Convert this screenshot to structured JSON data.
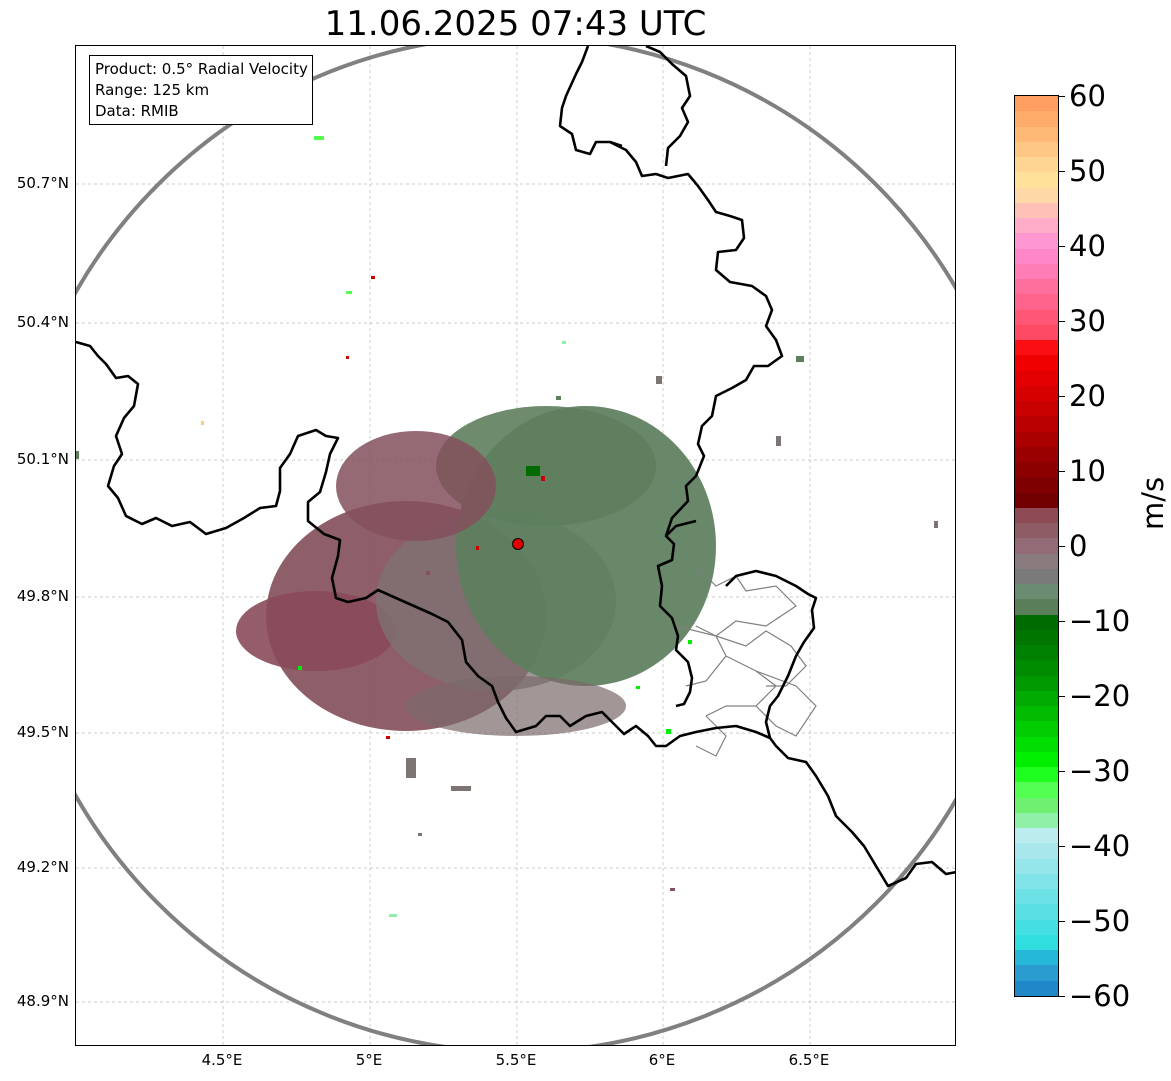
{
  "title": "11.06.2025 07:43 UTC",
  "info_box": {
    "product": "Product: 0.5° Radial Velocity",
    "range": "Range: 125 km",
    "source": "Data: RMIB"
  },
  "map": {
    "lat_labels": [
      "50.7°N",
      "50.4°N",
      "50.1°N",
      "49.8°N",
      "49.5°N",
      "49.2°N",
      "48.9°N"
    ],
    "lon_labels": [
      "4.5°E",
      "5°E",
      "5.5°E",
      "6°E",
      "6.5°E"
    ],
    "radar_site": {
      "lon": 5.505,
      "lat": 49.914
    },
    "range_circle_color": "#808080",
    "border_color": "#000000",
    "subregion_border_color": "#808080",
    "gridline_color": "#bbbbbb"
  },
  "colorbar": {
    "unit": "m/s",
    "min": -60,
    "max": 60,
    "tick_labels": [
      "60",
      "50",
      "40",
      "30",
      "20",
      "10",
      "0",
      "−10",
      "−20",
      "−30",
      "−40",
      "−50",
      "−60"
    ],
    "bands_top_to_bottom": [
      "#ff9e5e",
      "#ffab6a",
      "#ffb977",
      "#ffc785",
      "#ffd593",
      "#ffe199",
      "#ffd8a8",
      "#ffc0b5",
      "#ffacc8",
      "#ff98d2",
      "#ff86c8",
      "#ff7cb5",
      "#ff6f9e",
      "#ff638c",
      "#ff5676",
      "#ff4a63",
      "#fa0f12",
      "#f00000",
      "#e40000",
      "#d60000",
      "#c80000",
      "#b90000",
      "#aa0000",
      "#9b0000",
      "#8c0000",
      "#7e0000",
      "#720000",
      "#8b4a54",
      "#8e5c65",
      "#926b76",
      "#8a7b7e",
      "#7a7a7a",
      "#6b8c70",
      "#5a7e5a",
      "#006b00",
      "#007500",
      "#008000",
      "#008c00",
      "#009a00",
      "#00aa00",
      "#00bb00",
      "#00cc00",
      "#00dd00",
      "#00ee00",
      "#1fff1f",
      "#52ff52",
      "#70f070",
      "#8ff0a8",
      "#bdecef",
      "#a8e8ec",
      "#94e6ea",
      "#80e4e8",
      "#6ce2e6",
      "#58e0e4",
      "#44dfe2",
      "#30dee0",
      "#26b8d8",
      "#2a9ccf",
      "#2088c8"
    ]
  },
  "echo_colors": {
    "receding": "#84505c",
    "approaching": "#5e7e5e",
    "mid": "#7d7474"
  }
}
